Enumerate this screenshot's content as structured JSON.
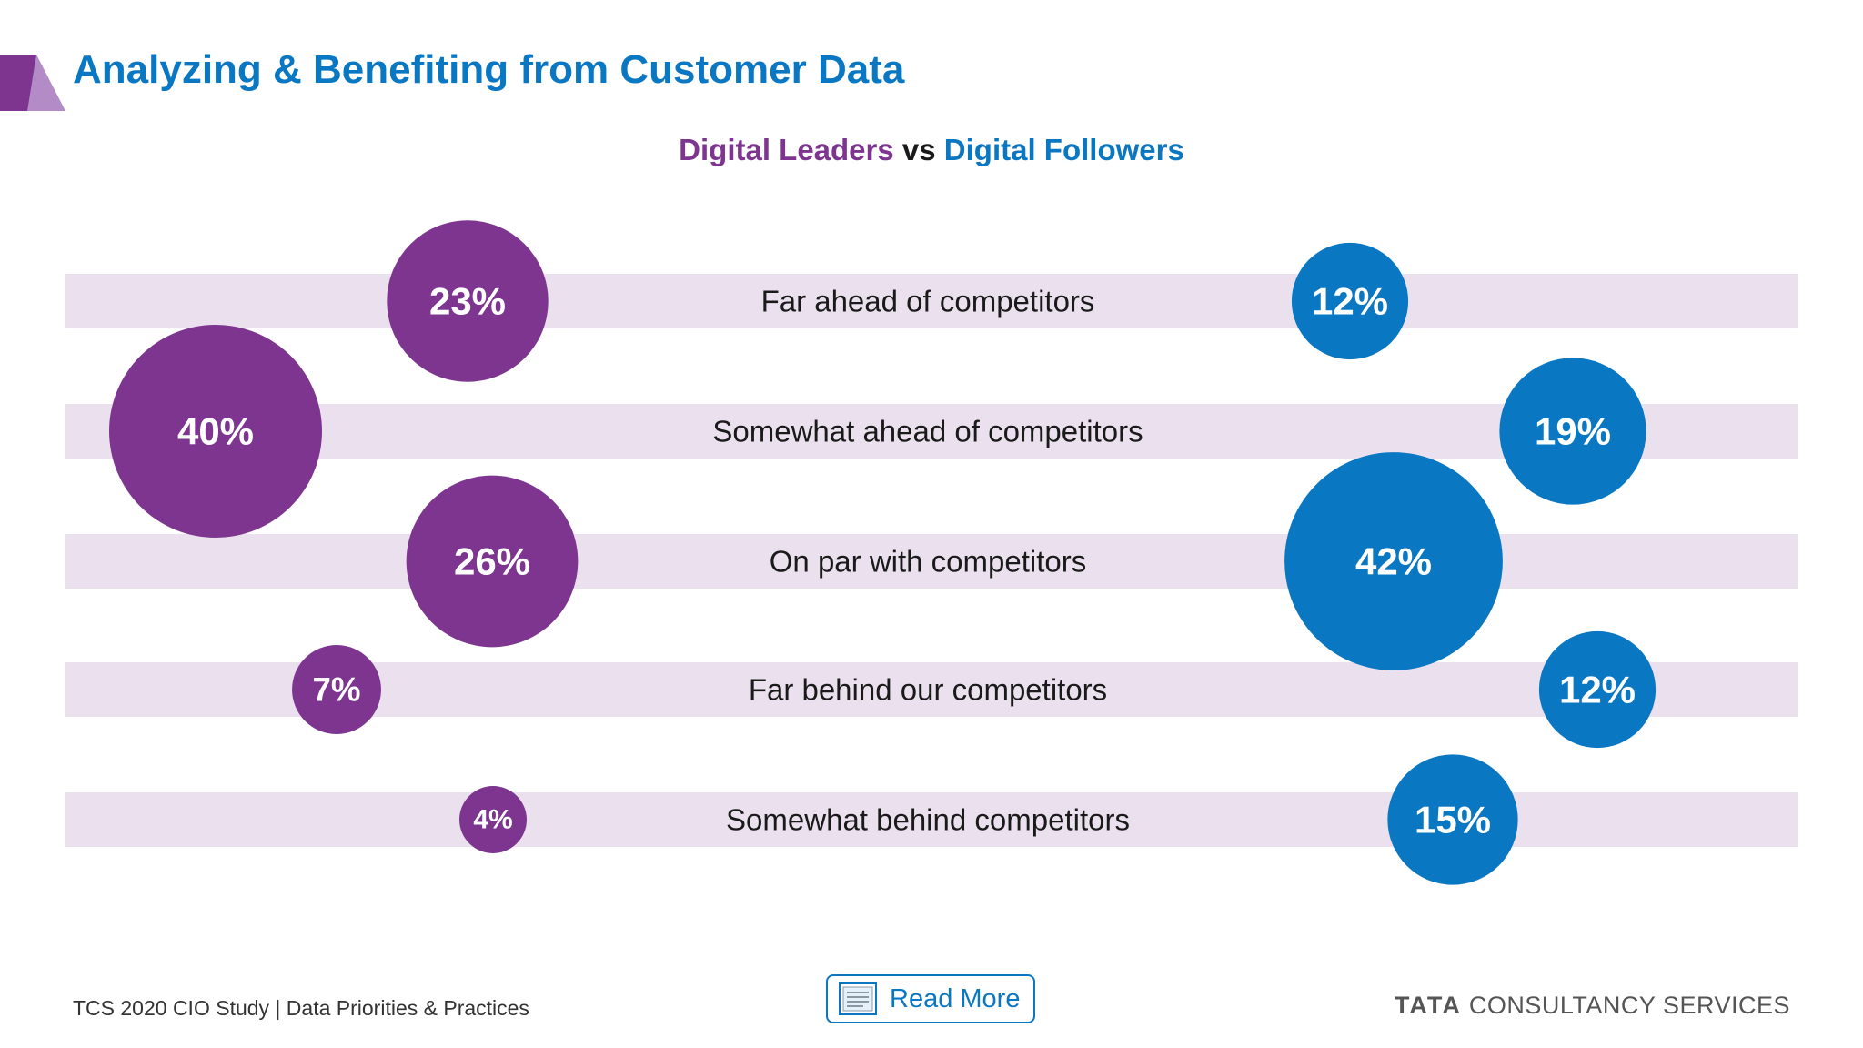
{
  "header": {
    "title": "Analyzing & Benefiting from Customer Data"
  },
  "legend": {
    "leaders": "Digital Leaders",
    "vs": "vs",
    "followers": "Digital Followers"
  },
  "colors": {
    "leaders": "#7d3590",
    "followers": "#0a77c2",
    "band": "#ebe1ee",
    "title": "#0a77c2"
  },
  "chart_data": {
    "type": "bubble",
    "categories": [
      "Far ahead  of competitors",
      "Somewhat ahead of competitors",
      "On par with competitors",
      "Far behind our competitors",
      "Somewhat behind competitors"
    ],
    "series": [
      {
        "name": "Digital Leaders",
        "values": [
          23,
          40,
          26,
          7,
          4
        ],
        "labels": [
          "23%",
          "40%",
          "26%",
          "7%",
          "4%"
        ]
      },
      {
        "name": "Digital Followers",
        "values": [
          12,
          19,
          42,
          12,
          15
        ],
        "labels": [
          "12%",
          "19%",
          "42%",
          "12%",
          "15%"
        ]
      }
    ],
    "unit": "%"
  },
  "footer": {
    "source": "TCS 2020 CIO Study | Data Priorities & Practices",
    "read_more": "Read More",
    "brand_strong": "TATA",
    "brand_rest": "CONSULTANCY SERVICES"
  }
}
